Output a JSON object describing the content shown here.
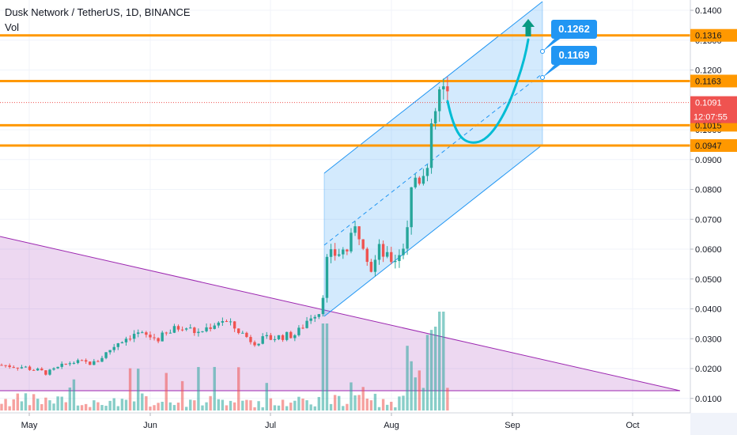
{
  "header": {
    "title": "Dusk Network / TetherUS, 1D, BINANCE",
    "volume_label": "Vol"
  },
  "chart_data": {
    "type": "candlestick",
    "y_axis_ticks": [
      "0.1400",
      "0.1300",
      "0.1200",
      "0.1000",
      "0.0900",
      "0.0800",
      "0.0700",
      "0.0600",
      "0.0500",
      "0.0400",
      "0.0300",
      "0.0200",
      "0.0100"
    ],
    "y_axis_values": [
      0.14,
      0.13,
      0.12,
      0.1,
      0.09,
      0.08,
      0.07,
      0.06,
      0.05,
      0.04,
      0.03,
      0.02,
      0.01
    ],
    "x_axis_labels": [
      "May",
      "Jun",
      "Jul",
      "Aug",
      "Sep",
      "Oct"
    ],
    "horizontal_levels": [
      {
        "value": 0.1316,
        "label": "0.1316"
      },
      {
        "value": 0.1163,
        "label": "0.1163"
      },
      {
        "value": 0.1015,
        "label": "0.1015"
      },
      {
        "value": 0.0947,
        "label": "0.0947"
      }
    ],
    "current_price": {
      "value": 0.1091,
      "label": "0.1091"
    },
    "countdown": "12:07:55",
    "callouts": [
      {
        "value": 0.1262,
        "label": "0.1262"
      },
      {
        "value": 0.1169,
        "label": "0.1169"
      }
    ],
    "colors": {
      "up": "#26a69a",
      "down": "#ef5350",
      "level_line": "#ff9800",
      "channel": "#2196f3",
      "triangle": "#9c27b0",
      "forecast": "#00bcd4",
      "callout": "#2196f3"
    }
  }
}
